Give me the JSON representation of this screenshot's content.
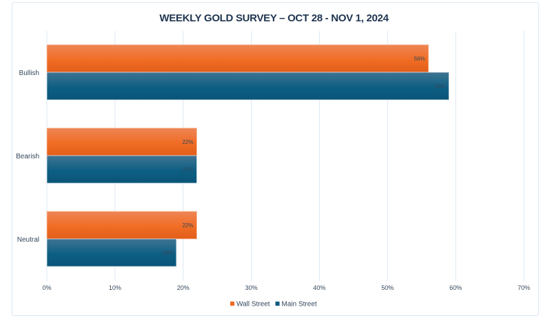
{
  "chart_data": {
    "type": "bar",
    "orientation": "horizontal",
    "title": "WEEKLY GOLD SURVEY – OCT 28 - NOV 1, 2024",
    "categories": [
      "Bullish",
      "Bearish",
      "Neutral"
    ],
    "series": [
      {
        "name": "Wall Street",
        "values": [
          56,
          22,
          22
        ],
        "labels": [
          "56%",
          "22%",
          "22%"
        ],
        "color": "#ee6a26"
      },
      {
        "name": "Main Street",
        "values": [
          59,
          22,
          19
        ],
        "labels": [
          "59%",
          "22%",
          "19%"
        ],
        "color": "#0d5a7e"
      }
    ],
    "xlim": [
      0,
      70
    ],
    "xticks": [
      "0%",
      "10%",
      "20%",
      "30%",
      "40%",
      "50%",
      "60%",
      "70%"
    ],
    "grid": true,
    "legend": "bottom"
  }
}
